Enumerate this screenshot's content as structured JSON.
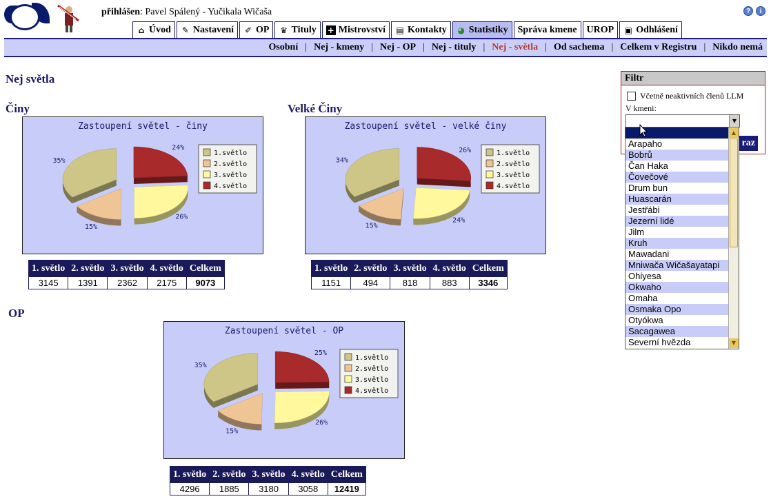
{
  "header": {
    "login_label": "přihlášen",
    "login_user": ": Pavel Spálený - Yučikala Wičaša",
    "help_icon": "?",
    "info_icon": "i"
  },
  "tabs": [
    {
      "label": "Úvod",
      "icon": "house-icon"
    },
    {
      "label": "Nastavení",
      "icon": "settings-icon"
    },
    {
      "label": "OP",
      "icon": "pen-icon"
    },
    {
      "label": "Tituly",
      "icon": "crown-icon"
    },
    {
      "label": "Mistrovství",
      "icon": "plus-icon"
    },
    {
      "label": "Kontakty",
      "icon": "card-icon"
    },
    {
      "label": "Statistiky",
      "icon": "pie-icon",
      "active": true
    },
    {
      "label": "Správa kmene"
    },
    {
      "label": "UROP"
    },
    {
      "label": "Odhlášení",
      "icon": "door-icon"
    }
  ],
  "subnav": [
    {
      "label": "Osobní"
    },
    {
      "label": "Nej - kmeny"
    },
    {
      "label": "Nej - OP"
    },
    {
      "label": "Nej - tituly"
    },
    {
      "label": "Nej - světla",
      "current": true
    },
    {
      "label": "Od sachema"
    },
    {
      "label": "Celkem v Registru"
    },
    {
      "label": "Nikdo nemá"
    }
  ],
  "page_title": "Nej světla",
  "colors": {
    "s1": "#cdc686",
    "s2": "#f0c596",
    "s3": "#fff89c",
    "s4": "#a82a2a",
    "chart_bg": "#c8ccf8",
    "table_head": "#1a1a5a"
  },
  "sections": [
    {
      "heading": "Činy",
      "chart_title": "Zastoupení světel - činy",
      "legend": [
        "1.světlo",
        "2.světlo",
        "3.světlo",
        "4.světlo"
      ],
      "percent_labels": [
        "35%",
        "15%",
        "26%",
        "24%"
      ],
      "table_headers": [
        "1. světlo",
        "2. světlo",
        "3. světlo",
        "4. světlo",
        "Celkem"
      ],
      "table_values": [
        "3145",
        "1391",
        "2362",
        "2175",
        "9073"
      ]
    },
    {
      "heading": "Velké Činy",
      "chart_title": "Zastoupení světel - velké činy",
      "legend": [
        "1.světlo",
        "2.světlo",
        "3.světlo",
        "4.světlo"
      ],
      "percent_labels": [
        "34%",
        "15%",
        "24%",
        "26%"
      ],
      "table_headers": [
        "1. světlo",
        "2. světlo",
        "3. světlo",
        "4. světlo",
        "Celkem"
      ],
      "table_values": [
        "1151",
        "494",
        "818",
        "883",
        "3346"
      ]
    },
    {
      "heading": "OP",
      "chart_title": "Zastoupení světel - OP",
      "legend": [
        "1.světlo",
        "2.světlo",
        "3.světlo",
        "4.světlo"
      ],
      "percent_labels": [
        "35%",
        "15%",
        "26%",
        "25%"
      ],
      "table_headers": [
        "1. světlo",
        "2. světlo",
        "3. světlo",
        "4. světlo",
        "Celkem"
      ],
      "table_values": [
        "4296",
        "1885",
        "3180",
        "3058",
        "12419"
      ]
    }
  ],
  "chart_data": [
    {
      "type": "pie",
      "title": "Zastoupení světel - činy",
      "categories": [
        "1.světlo",
        "2.světlo",
        "3.světlo",
        "4.světlo"
      ],
      "values": [
        3145,
        1391,
        2362,
        2175
      ],
      "percent_labels": [
        "35%",
        "15%",
        "26%",
        "24%"
      ],
      "legend_position": "top-right"
    },
    {
      "type": "pie",
      "title": "Zastoupení světel - velké činy",
      "categories": [
        "1.světlo",
        "2.světlo",
        "3.světlo",
        "4.světlo"
      ],
      "values": [
        1151,
        494,
        818,
        883
      ],
      "percent_labels": [
        "34%",
        "15%",
        "24%",
        "26%"
      ],
      "legend_position": "top-right"
    },
    {
      "type": "pie",
      "title": "Zastoupení světel - OP",
      "categories": [
        "1.světlo",
        "2.světlo",
        "3.světlo",
        "4.světlo"
      ],
      "values": [
        4296,
        1885,
        3180,
        3058
      ],
      "percent_labels": [
        "35%",
        "15%",
        "26%",
        "25%"
      ],
      "legend_position": "top-right"
    }
  ],
  "filter": {
    "title": "Filtr",
    "checkbox_label": "Včetně neaktivních členů LLM",
    "tribe_label": "V kmeni:",
    "select_value": "",
    "button_label": "raz",
    "options": [
      "",
      "Arapaho",
      "Bobrů",
      "Čan Haka",
      "Čovečové",
      "Drum bun",
      "Huascarán",
      "Jestřábi",
      "Jezerní lidé",
      "Jilm",
      "Kruh",
      "Mawadani",
      "Mniwača Wičašayatapi",
      "Ohiyesa",
      "Okwaho",
      "Omaha",
      "Osmaka Opo",
      "Otyókwa",
      "Sacagawea",
      "Severní hvězda"
    ]
  }
}
